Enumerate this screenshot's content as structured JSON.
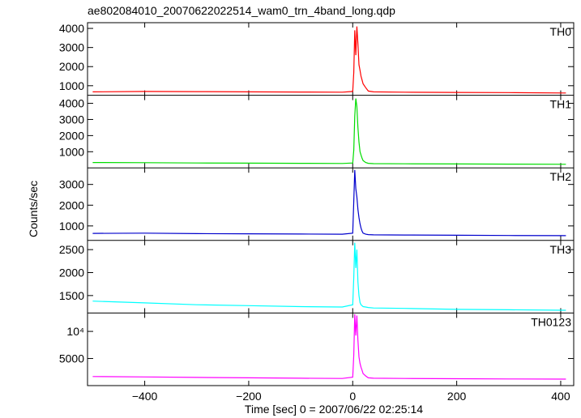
{
  "title": "ae802084010_20070622022514_wam0_trn_4band_long.qdp",
  "ylabel": "Counts/sec",
  "xlabel": "Time [sec] 0 = 2007/06/22 02:25:14",
  "chart_data": {
    "type": "line",
    "title": "ae802084010_20070622022514_wam0_trn_4band_long.qdp",
    "xlabel": "Time [sec] 0 = 2007/06/22 02:25:14",
    "ylabel": "Counts/sec",
    "xlim": [
      -510,
      425
    ],
    "x_ticks": [
      -400,
      -200,
      0,
      200,
      400
    ],
    "x_tick_labels": [
      "−400",
      "−200",
      "0",
      "200",
      "400"
    ],
    "grid": false,
    "panels": [
      {
        "name": "TH0",
        "color": "#ff0000",
        "ylim": [
          500,
          4300
        ],
        "y_ticks": [
          1000,
          2000,
          3000,
          4000
        ],
        "y_tick_labels": [
          "1000",
          "2000",
          "3000",
          "4000"
        ],
        "log": false,
        "series": [
          {
            "x": [
              -500,
              -400,
              -300,
              -200,
              -100,
              -20,
              0,
              2,
              4,
              6,
              8,
              10,
              12,
              14,
              16,
              18,
              20,
              25,
              30,
              40,
              100,
              200,
              300,
              410
            ],
            "y": [
              680,
              700,
              690,
              680,
              670,
              660,
              700,
              1700,
              3900,
              2600,
              4100,
              3200,
              2100,
              1800,
              1500,
              1300,
              1100,
              900,
              720,
              680,
              660,
              650,
              640,
              620
            ]
          }
        ]
      },
      {
        "name": "TH1",
        "color": "#00dd00",
        "ylim": [
          0,
          4500
        ],
        "y_ticks": [
          1000,
          2000,
          3000,
          4000
        ],
        "y_tick_labels": [
          "1000",
          "2000",
          "3000",
          "4000"
        ],
        "log": false,
        "series": [
          {
            "x": [
              -500,
              -400,
              -300,
              -200,
              -100,
              -20,
              0,
              2,
              4,
              6,
              8,
              10,
              12,
              14,
              16,
              18,
              20,
              25,
              30,
              40,
              100,
              200,
              300,
              410
            ],
            "y": [
              330,
              320,
              300,
              290,
              280,
              270,
              300,
              1100,
              3200,
              4300,
              3800,
              2500,
              1600,
              1000,
              800,
              600,
              450,
              330,
              280,
              260,
              250,
              240,
              230,
              220
            ]
          }
        ]
      },
      {
        "name": "TH2",
        "color": "#0000cc",
        "ylim": [
          300,
          3800
        ],
        "y_ticks": [
          1000,
          2000,
          3000
        ],
        "y_tick_labels": [
          "1000",
          "2000",
          "3000"
        ],
        "log": false,
        "series": [
          {
            "x": [
              -500,
              -400,
              -300,
              -200,
              -100,
              -20,
              0,
              2,
              4,
              6,
              8,
              10,
              12,
              14,
              16,
              18,
              20,
              25,
              30,
              40,
              100,
              200,
              300,
              410
            ],
            "y": [
              640,
              650,
              630,
              620,
              610,
              600,
              650,
              2200,
              3700,
              2800,
              2400,
              1800,
              1400,
              1100,
              900,
              750,
              650,
              600,
              580,
              570,
              560,
              550,
              540,
              530
            ]
          }
        ]
      },
      {
        "name": "TH3",
        "color": "#00ffff",
        "ylim": [
          1120,
          2700
        ],
        "y_ticks": [
          1500,
          2000,
          2500
        ],
        "y_tick_labels": [
          "1500",
          "2000",
          "2500"
        ],
        "log": false,
        "series": [
          {
            "x": [
              -500,
              -400,
              -300,
              -200,
              -100,
              -20,
              0,
              2,
              4,
              6,
              8,
              10,
              12,
              14,
              16,
              18,
              20,
              25,
              30,
              40,
              100,
              200,
              300,
              410
            ],
            "y": [
              1380,
              1340,
              1300,
              1280,
              1260,
              1250,
              1300,
              1900,
              2650,
              2100,
              2500,
              1800,
              1500,
              1350,
              1300,
              1280,
              1260,
              1250,
              1240,
              1230,
              1220,
              1200,
              1190,
              1180
            ]
          }
        ]
      },
      {
        "name": "TH0123",
        "color": "#ff00ff",
        "ylim": [
          2500,
          16000
        ],
        "y_ticks": [
          5000,
          10000
        ],
        "y_tick_labels": [
          "5000",
          "10⁴"
        ],
        "log": true,
        "series": [
          {
            "x": [
              -500,
              -400,
              -300,
              -200,
              -100,
              -20,
              0,
              2,
              4,
              6,
              8,
              10,
              12,
              14,
              16,
              18,
              20,
              25,
              30,
              40,
              100,
              200,
              300,
              410
            ],
            "y": [
              3150,
              3120,
              3080,
              3050,
              3020,
              3000,
              3100,
              5500,
              15500,
              9000,
              15000,
              8000,
              5200,
              4400,
              4000,
              3700,
              3400,
              3200,
              3050,
              3020,
              3000,
              2980,
              2960,
              2950
            ]
          }
        ]
      }
    ]
  }
}
